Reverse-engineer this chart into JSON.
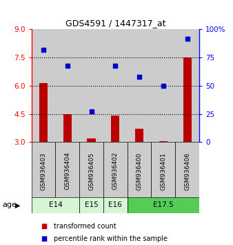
{
  "title": "GDS4591 / 1447317_at",
  "samples": [
    "GSM936403",
    "GSM936404",
    "GSM936405",
    "GSM936402",
    "GSM936400",
    "GSM936401",
    "GSM936406"
  ],
  "transformed_counts": [
    6.15,
    4.5,
    3.2,
    4.4,
    3.7,
    3.05,
    7.5
  ],
  "percentile_ranks": [
    82,
    68,
    27,
    68,
    58,
    50,
    92
  ],
  "age_groups": [
    {
      "label": "E14",
      "samples": [
        0,
        1
      ],
      "color": "#d6f5d6"
    },
    {
      "label": "E15",
      "samples": [
        2
      ],
      "color": "#d6f5d6"
    },
    {
      "label": "E16",
      "samples": [
        3
      ],
      "color": "#d6f5d6"
    },
    {
      "label": "E17.5",
      "samples": [
        4,
        5,
        6
      ],
      "color": "#55cc55"
    }
  ],
  "bar_color": "#bb0000",
  "dot_color": "#0000cc",
  "left_ylim": [
    3,
    9
  ],
  "right_ylim": [
    0,
    100
  ],
  "left_yticks": [
    3,
    4.5,
    6,
    7.5,
    9
  ],
  "right_yticks": [
    0,
    25,
    50,
    75,
    100
  ],
  "right_yticklabels": [
    "0",
    "25",
    "50",
    "75",
    "100%"
  ],
  "hlines": [
    4.5,
    6.0,
    7.5
  ],
  "col_bg_color": "#cccccc",
  "legend_bar_label": "transformed count",
  "legend_dot_label": "percentile rank within the sample",
  "age_label": "age"
}
